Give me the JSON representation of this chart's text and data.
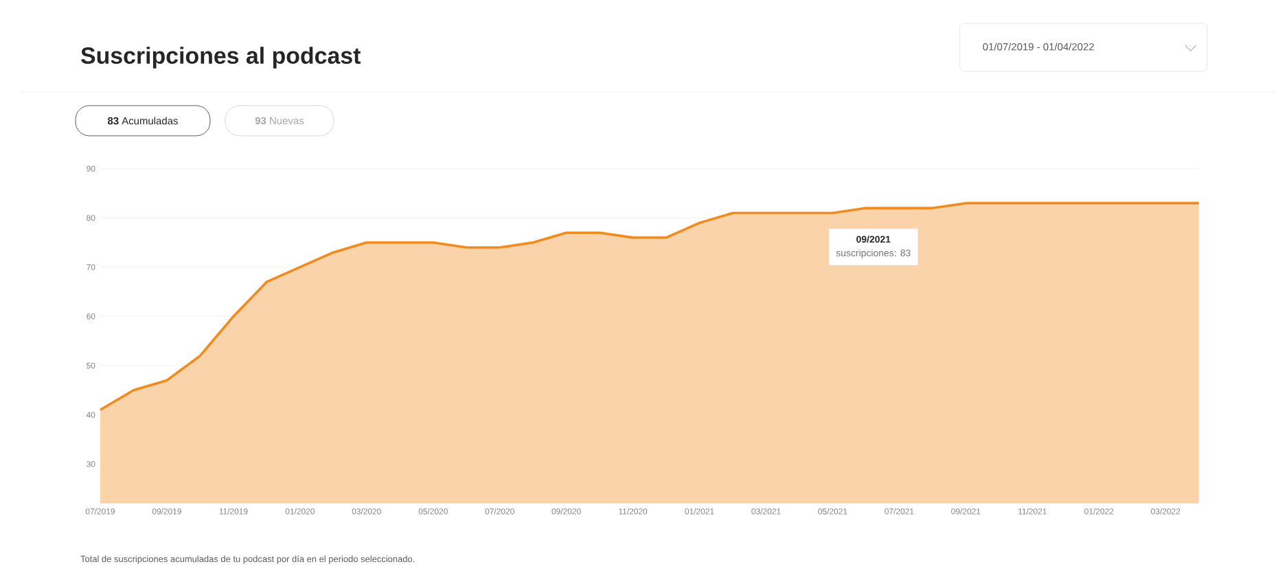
{
  "chart_data": {
    "type": "area",
    "title": "Suscripciones al podcast",
    "x": [
      "2019-07",
      "2019-08",
      "2019-09",
      "2019-10",
      "2019-11",
      "2019-12",
      "2020-01",
      "2020-02",
      "2020-03",
      "2020-04",
      "2020-05",
      "2020-06",
      "2020-07",
      "2020-08",
      "2020-09",
      "2020-10",
      "2020-11",
      "2020-12",
      "2021-01",
      "2021-02",
      "2021-03",
      "2021-04",
      "2021-05",
      "2021-06",
      "2021-07",
      "2021-08",
      "2021-09",
      "2021-10",
      "2021-11",
      "2021-12",
      "2022-01",
      "2022-02",
      "2022-03",
      "2022-04"
    ],
    "series": [
      {
        "color": "#f28a1e",
        "values": [
          41,
          45,
          47,
          52,
          60,
          67,
          70,
          73,
          75,
          75,
          75,
          74,
          74,
          75,
          77,
          77,
          76,
          76,
          79,
          81,
          81,
          81,
          81,
          82,
          82,
          82,
          83,
          83,
          83,
          83,
          83,
          83,
          83,
          83
        ]
      }
    ],
    "xlim": [
      "2019-07",
      "2022-04"
    ],
    "xticks": [
      {
        "value": "2019-07",
        "label": "07/2019"
      },
      {
        "value": "2019-09",
        "label": "09/2019"
      },
      {
        "value": "2019-11",
        "label": "11/2019"
      },
      {
        "value": "2020-01",
        "label": "01/2020"
      },
      {
        "value": "2020-03",
        "label": "03/2020"
      },
      {
        "value": "2020-05",
        "label": "05/2020"
      },
      {
        "value": "2020-07",
        "label": "07/2020"
      },
      {
        "value": "2020-09",
        "label": "09/2020"
      },
      {
        "value": "2020-11",
        "label": "11/2020"
      },
      {
        "value": "2021-01",
        "label": "01/2021"
      },
      {
        "value": "2021-03",
        "label": "03/2021"
      },
      {
        "value": "2021-05",
        "label": "05/2021"
      },
      {
        "value": "2021-07",
        "label": "07/2021"
      },
      {
        "value": "2021-09",
        "label": "09/2021"
      },
      {
        "value": "2021-11",
        "label": "11/2021"
      },
      {
        "value": "2022-01",
        "label": "01/2022"
      },
      {
        "value": "2022-03",
        "label": "03/2022"
      }
    ],
    "ylim": [
      22,
      90
    ],
    "yticks": [
      30,
      40,
      50,
      60,
      70,
      80,
      90
    ],
    "grid": "y",
    "marker": "none",
    "line_style": "solid",
    "annotations": [
      "01/07/2019 - 01/04/2022",
      "**83** Acumuladas",
      "**93** Nuevas",
      "Total de suscripciones acumuladas de tu podcast por día en el periodo seleccionado.",
      "09/2021",
      "suscripciones: 83"
    ]
  }
}
